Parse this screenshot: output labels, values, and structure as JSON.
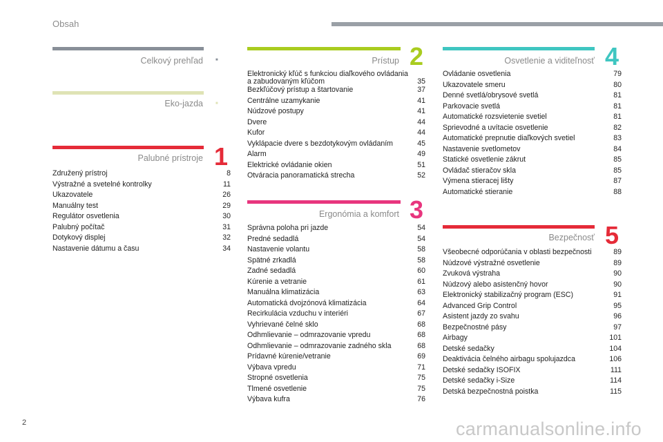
{
  "header": {
    "title": "Obsah"
  },
  "colors": {
    "gray": "#888f98",
    "eco": "#dfe3b5",
    "red": "#e52b38",
    "green": "#a9cc1f",
    "pink": "#e8357e",
    "teal": "#3fc6c1"
  },
  "sections": {
    "overview": {
      "title": "Celkový prehľad",
      "marker": "■"
    },
    "eco": {
      "title": "Eko-jazda",
      "marker": "■"
    },
    "dashboard": {
      "title": "Palubné prístroje",
      "number": "1",
      "entries": [
        {
          "t": "Združený prístroj",
          "p": "8"
        },
        {
          "t": "Výstražné a svetelné kontrolky",
          "p": "11"
        },
        {
          "t": "Ukazovatele",
          "p": "26"
        },
        {
          "t": "Manuálny test",
          "p": "29"
        },
        {
          "t": "Regulátor osvetlenia",
          "p": "30"
        },
        {
          "t": "Palubný počítač",
          "p": "31"
        },
        {
          "t": "Dotykový displej",
          "p": "32"
        },
        {
          "t": "Nastavenie dátumu a času",
          "p": "34"
        }
      ]
    },
    "access": {
      "title": "Prístup",
      "number": "2",
      "entries": [
        {
          "t": "Elektronický kľúč s funkciou diaľkového ovládania a zabudovaným kľúčom",
          "p": "35"
        },
        {
          "t": "Bezkľúčový prístup a štartovanie",
          "p": "37"
        },
        {
          "t": "Centrálne uzamykanie",
          "p": "41"
        },
        {
          "t": "Núdzové postupy",
          "p": "41"
        },
        {
          "t": "Dvere",
          "p": "44"
        },
        {
          "t": "Kufor",
          "p": "44"
        },
        {
          "t": "Vyklápacie dvere s bezdotykovým ovládaním",
          "p": "45"
        },
        {
          "t": "Alarm",
          "p": "49"
        },
        {
          "t": "Elektrické ovládanie okien",
          "p": "51"
        },
        {
          "t": "Otváracia panoramatická strecha",
          "p": "52"
        }
      ]
    },
    "comfort": {
      "title": "Ergonómia a komfort",
      "number": "3",
      "entries": [
        {
          "t": "Správna poloha pri jazde",
          "p": "54"
        },
        {
          "t": "Predné sedadlá",
          "p": "54"
        },
        {
          "t": "Nastavenie volantu",
          "p": "58"
        },
        {
          "t": "Spätné zrkadlá",
          "p": "58"
        },
        {
          "t": "Zadné sedadlá",
          "p": "60"
        },
        {
          "t": "Kúrenie a vetranie",
          "p": "61"
        },
        {
          "t": "Manuálna klimatizácia",
          "p": "63"
        },
        {
          "t": "Automatická dvojzónová klimatizácia",
          "p": "64"
        },
        {
          "t": "Recirkulácia vzduchu v interiéri",
          "p": "67"
        },
        {
          "t": "Vyhrievané čelné sklo",
          "p": "68"
        },
        {
          "t": "Odhmlievanie – odmrazovanie vpredu",
          "p": "68"
        },
        {
          "t": "Odhmlievanie – odmrazovanie zadného skla",
          "p": "68"
        },
        {
          "t": "Prídavné kúrenie/vetranie",
          "p": "69"
        },
        {
          "t": "Výbava vpredu",
          "p": "71"
        },
        {
          "t": "Stropné osvetlenia",
          "p": "75"
        },
        {
          "t": "Tlmené osvetlenie",
          "p": "75"
        },
        {
          "t": "Výbava kufra",
          "p": "76"
        }
      ]
    },
    "lighting": {
      "title": "Osvetlenie a viditeľnosť",
      "number": "4",
      "entries": [
        {
          "t": "Ovládanie osvetlenia",
          "p": "79"
        },
        {
          "t": "Ukazovatele smeru",
          "p": "80"
        },
        {
          "t": "Denné svetlá/obrysové svetlá",
          "p": "81"
        },
        {
          "t": "Parkovacie svetlá",
          "p": "81"
        },
        {
          "t": "Automatické rozsvietenie svetiel",
          "p": "81"
        },
        {
          "t": "Sprievodné a uvítacie osvetlenie",
          "p": "82"
        },
        {
          "t": "Automatické prepnutie diaľkových svetiel",
          "p": "83"
        },
        {
          "t": "Nastavenie svetlometov",
          "p": "84"
        },
        {
          "t": "Statické osvetlenie zákrut",
          "p": "85"
        },
        {
          "t": "Ovládač stieračov skla",
          "p": "85"
        },
        {
          "t": "Výmena stieracej lišty",
          "p": "87"
        },
        {
          "t": "Automatické stieranie",
          "p": "88"
        }
      ]
    },
    "safety": {
      "title": "Bezpečnosť",
      "number": "5",
      "entries": [
        {
          "t": "Všeobecné odporúčania v oblasti bezpečnosti",
          "p": "89"
        },
        {
          "t": "Núdzové výstražné osvetlenie",
          "p": "89"
        },
        {
          "t": "Zvuková výstraha",
          "p": "90"
        },
        {
          "t": "Núdzový alebo asistenčný hovor",
          "p": "90"
        },
        {
          "t": "Elektronický stabilizačný program (ESC)",
          "p": "91"
        },
        {
          "t": "Advanced Grip Control",
          "p": "95"
        },
        {
          "t": "Asistent jazdy zo svahu",
          "p": "96"
        },
        {
          "t": "Bezpečnostné pásy",
          "p": "97"
        },
        {
          "t": "Airbagy",
          "p": "101"
        },
        {
          "t": "Detské sedačky",
          "p": "104"
        },
        {
          "t": "Deaktivácia čelného airbagu spolujazdca",
          "p": "106"
        },
        {
          "t": "Detské sedačky ISOFIX",
          "p": "111"
        },
        {
          "t": "Detské sedačky i-Size",
          "p": "114"
        },
        {
          "t": "Detská bezpečnostná poistka",
          "p": "115"
        }
      ]
    }
  },
  "footer": {
    "page": "2",
    "watermark": "carmanualsonline.info"
  }
}
